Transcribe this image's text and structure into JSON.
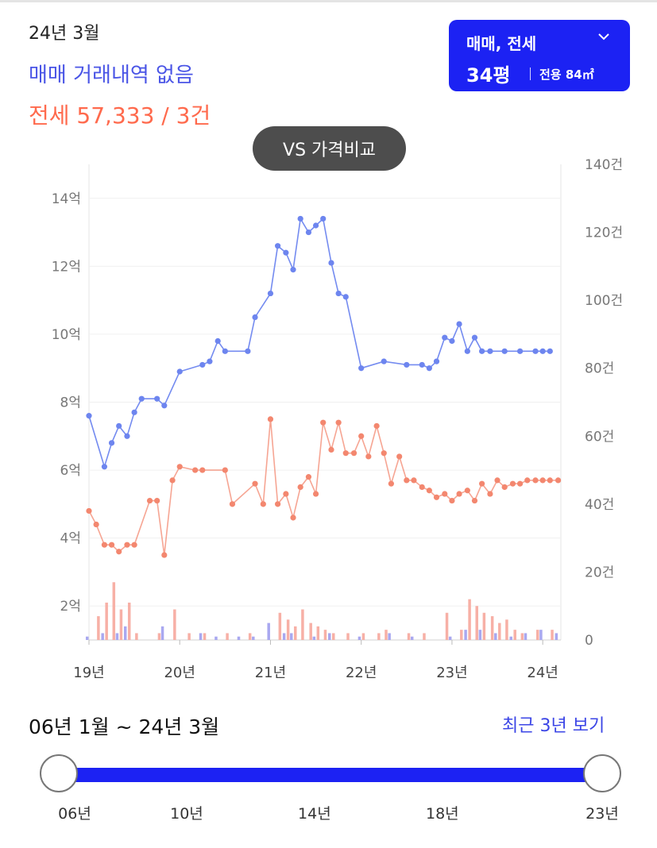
{
  "header": {
    "period": "24년 3월",
    "sale_summary": "매매 거래내역 없음",
    "lease_summary": "전세 57,333 / 3건"
  },
  "filter": {
    "type_label": "매매, 전세",
    "pyeong": "34평",
    "area": "전용 84㎡"
  },
  "vs_button": {
    "label": "VS 가격비교"
  },
  "colors": {
    "sale": "#6d85ef",
    "lease": "#f3876f",
    "sale_bar": "#a9a8f0",
    "lease_bar": "#f7b0a6",
    "accent": "#1c22f3"
  },
  "chart_data": {
    "type": "line",
    "xlim": [
      2019.0,
      2024.2
    ],
    "x_ticks": [
      2019,
      2020,
      2021,
      2022,
      2023,
      2024
    ],
    "x_tick_labels": [
      "19년",
      "20년",
      "21년",
      "22년",
      "23년",
      "24년"
    ],
    "y_left": {
      "range": [
        1,
        15
      ],
      "ticks": [
        2,
        4,
        6,
        8,
        10,
        12,
        14
      ],
      "tick_labels": [
        "2억",
        "4억",
        "6억",
        "8억",
        "10억",
        "12억",
        "14억"
      ]
    },
    "y_right": {
      "range": [
        0,
        140
      ],
      "ticks": [
        0,
        20,
        40,
        60,
        80,
        100,
        120,
        140
      ],
      "tick_labels": [
        "0",
        "20건",
        "40건",
        "60건",
        "80건",
        "100건",
        "120건",
        "140건"
      ]
    },
    "grid": true,
    "series": [
      {
        "x": [
          2019.0,
          2019.17,
          2019.25,
          2019.33,
          2019.42,
          2019.5,
          2019.58,
          2019.75,
          2019.83,
          2020.0,
          2020.25,
          2020.33,
          2020.42,
          2020.5,
          2020.75,
          2020.83,
          2021.0,
          2021.08,
          2021.17,
          2021.25,
          2021.33,
          2021.42,
          2021.5,
          2021.58,
          2021.67,
          2021.75,
          2021.83,
          2022.0,
          2022.25,
          2022.5,
          2022.67,
          2022.75,
          2022.83,
          2022.92,
          2023.0,
          2023.08,
          2023.17,
          2023.25,
          2023.33,
          2023.42,
          2023.58,
          2023.75,
          2023.92,
          2024.0,
          2024.08
        ],
        "y": [
          7.6,
          6.1,
          6.8,
          7.3,
          7.0,
          7.7,
          8.1,
          8.1,
          7.9,
          8.9,
          9.1,
          9.2,
          9.8,
          9.5,
          9.5,
          10.5,
          11.2,
          12.6,
          12.4,
          11.9,
          13.4,
          13.0,
          13.2,
          13.4,
          12.1,
          11.2,
          11.1,
          9.0,
          9.2,
          9.1,
          9.1,
          9.0,
          9.2,
          9.9,
          9.8,
          10.3,
          9.5,
          9.9,
          9.5,
          9.5,
          9.5,
          9.5,
          9.5,
          9.5,
          9.5
        ]
      },
      {
        "x": [
          2019.0,
          2019.08,
          2019.17,
          2019.25,
          2019.33,
          2019.42,
          2019.5,
          2019.67,
          2019.75,
          2019.83,
          2019.92,
          2020.0,
          2020.17,
          2020.25,
          2020.5,
          2020.58,
          2020.83,
          2020.92,
          2021.0,
          2021.08,
          2021.17,
          2021.25,
          2021.33,
          2021.42,
          2021.5,
          2021.58,
          2021.67,
          2021.75,
          2021.83,
          2021.92,
          2022.0,
          2022.08,
          2022.17,
          2022.25,
          2022.33,
          2022.42,
          2022.5,
          2022.58,
          2022.67,
          2022.75,
          2022.83,
          2022.92,
          2023.0,
          2023.08,
          2023.17,
          2023.25,
          2023.33,
          2023.42,
          2023.5,
          2023.58,
          2023.67,
          2023.75,
          2023.83,
          2023.92,
          2024.0,
          2024.08,
          2024.17
        ],
        "y": [
          4.8,
          4.4,
          3.8,
          3.8,
          3.6,
          3.8,
          3.8,
          5.1,
          5.1,
          3.5,
          5.7,
          6.1,
          6.0,
          6.0,
          6.0,
          5.0,
          5.6,
          5.0,
          7.5,
          5.0,
          5.3,
          4.6,
          5.5,
          5.8,
          5.3,
          7.4,
          6.6,
          7.4,
          6.5,
          6.5,
          7.0,
          6.4,
          7.3,
          6.5,
          5.6,
          6.4,
          5.7,
          5.7,
          5.5,
          5.4,
          5.2,
          5.3,
          5.1,
          5.3,
          5.4,
          5.1,
          5.6,
          5.3,
          5.7,
          5.5,
          5.6,
          5.6,
          5.7,
          5.7,
          5.7,
          5.7,
          5.7
        ]
      },
      {
        "type": "bar",
        "axis": "right",
        "x": [
          2019.0,
          2019.17,
          2019.33,
          2019.42,
          2019.83,
          2020.25,
          2020.42,
          2020.67,
          2020.83,
          2021.0,
          2021.17,
          2021.25,
          2021.5,
          2021.67,
          2022.0,
          2022.33,
          2022.58,
          2023.0,
          2023.17,
          2023.33,
          2023.5,
          2023.67,
          2023.83,
          2024.0,
          2024.17
        ],
        "y": [
          1,
          2,
          2,
          4,
          4,
          2,
          1,
          1,
          1,
          5,
          2,
          2,
          1,
          2,
          1,
          2,
          1,
          1,
          3,
          3,
          2,
          1,
          2,
          3,
          2
        ]
      },
      {
        "type": "bar",
        "axis": "right",
        "x": [
          2019.08,
          2019.17,
          2019.25,
          2019.33,
          2019.42,
          2019.5,
          2019.75,
          2019.92,
          2020.08,
          2020.25,
          2020.5,
          2020.75,
          2021.08,
          2021.17,
          2021.25,
          2021.33,
          2021.42,
          2021.5,
          2021.58,
          2021.67,
          2021.83,
          2022.0,
          2022.17,
          2022.25,
          2022.5,
          2022.67,
          2022.92,
          2023.08,
          2023.17,
          2023.25,
          2023.33,
          2023.42,
          2023.5,
          2023.58,
          2023.67,
          2023.75,
          2023.92,
          2024.08
        ],
        "y": [
          7,
          11,
          17,
          9,
          11,
          2,
          2,
          9,
          2,
          2,
          2,
          2,
          8,
          6,
          4,
          9,
          5,
          4,
          3,
          2,
          2,
          2,
          2,
          3,
          2,
          2,
          8,
          3,
          12,
          10,
          8,
          7,
          5,
          6,
          3,
          2,
          3,
          3
        ]
      }
    ]
  },
  "range": {
    "text": "06년 1월 ~ 24년 3월",
    "recent_label": "최근 3년 보기",
    "min_year": 2006,
    "max_year": 2023,
    "start_year": 2006,
    "end_year": 2023,
    "ticks": [
      {
        "label": "06년",
        "year": 2006
      },
      {
        "label": "10년",
        "year": 2010
      },
      {
        "label": "14년",
        "year": 2014
      },
      {
        "label": "18년",
        "year": 2018
      },
      {
        "label": "23년",
        "year": 2023
      }
    ]
  }
}
